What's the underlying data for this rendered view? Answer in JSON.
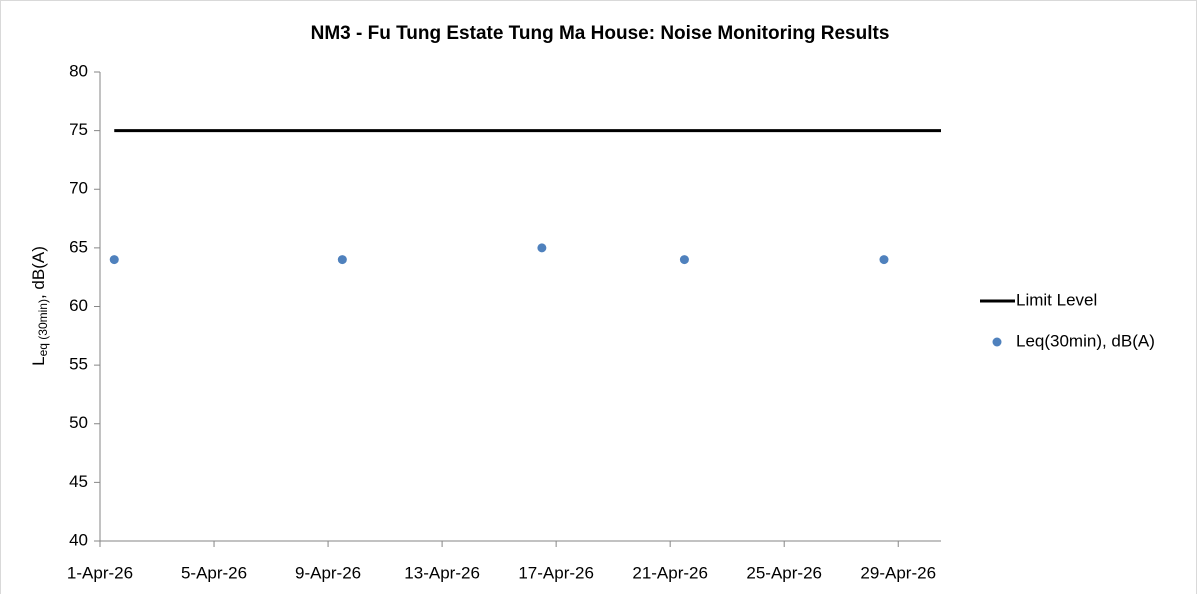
{
  "chart_data": {
    "type": "scatter",
    "title": "NM3 - Fu Tung Estate Tung Ma House: Noise Monitoring Results",
    "y_label": {
      "main": "L",
      "sub": "eq (30min)",
      "rest": ", dB(A)"
    },
    "xlim": [
      "2026-04-01",
      "2026-04-30T12:00"
    ],
    "xticks": [
      {
        "value": "2026-04-01",
        "label": "1-Apr-26"
      },
      {
        "value": "2026-04-05",
        "label": "5-Apr-26"
      },
      {
        "value": "2026-04-09",
        "label": "9-Apr-26"
      },
      {
        "value": "2026-04-13",
        "label": "13-Apr-26"
      },
      {
        "value": "2026-04-17",
        "label": "17-Apr-26"
      },
      {
        "value": "2026-04-21",
        "label": "21-Apr-26"
      },
      {
        "value": "2026-04-25",
        "label": "25-Apr-26"
      },
      {
        "value": "2026-04-29",
        "label": "29-Apr-26"
      }
    ],
    "ylim": [
      40,
      80
    ],
    "yticks": [
      40,
      45,
      50,
      55,
      60,
      65,
      70,
      75,
      80
    ],
    "grid": false,
    "legend": "right",
    "series": [
      {
        "name": "Limit Level",
        "kind": "line",
        "color": "#000000",
        "x": [
          "2026-04-01T12:00",
          "2026-04-30T12:00"
        ],
        "values": [
          75,
          75
        ]
      },
      {
        "name": "Leq(30min), dB(A)",
        "kind": "marker",
        "color": "#4f81bd",
        "x": [
          "2026-04-01T12:00",
          "2026-04-09T12:00",
          "2026-04-16T12:00",
          "2026-04-21T12:00",
          "2026-04-28T12:00"
        ],
        "values": [
          64,
          64,
          65,
          64,
          64
        ]
      }
    ]
  }
}
